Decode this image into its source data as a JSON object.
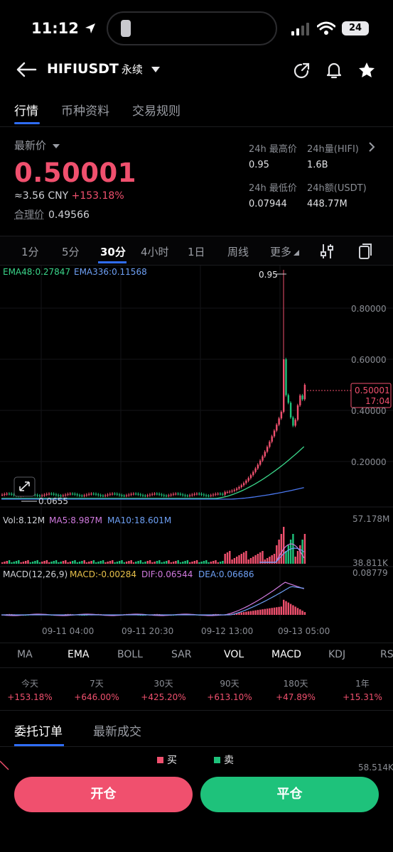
{
  "status_bar": {
    "time": "11:12",
    "battery": "24"
  },
  "header": {
    "pair": "HIFIUSDT",
    "contract_type": "永续"
  },
  "tabs": [
    {
      "label": "行情"
    },
    {
      "label": "币种资料"
    },
    {
      "label": "交易规则"
    }
  ],
  "ticker": {
    "last_price_label": "最新价",
    "last_price": "0.50001",
    "cny_value": "≈3.56 CNY",
    "change_pct": "+153.18%",
    "fair_price_label": "合理价",
    "fair_price": "0.49566",
    "high_label": "24h 最高价",
    "high_value": "0.95",
    "low_label": "24h 最低价",
    "low_value": "0.07944",
    "vol_label": "24h量(HIFI)",
    "vol_value": "1.6B",
    "amount_label": "24h额(USDT)",
    "amount_value": "448.77M"
  },
  "intervals": [
    {
      "label": "1分"
    },
    {
      "label": "5分"
    },
    {
      "label": "30分"
    },
    {
      "label": "4小时"
    },
    {
      "label": "1日"
    },
    {
      "label": "周线"
    },
    {
      "label": "更多"
    }
  ],
  "chart": {
    "ema48_label": "EMA48:0.27847",
    "ema336_label": "EMA336:0.11568",
    "peak_label": "0.95",
    "low_label": "0.0655",
    "y_ticks": [
      "0.80000",
      "0.60000",
      "0.40000",
      "0.20000"
    ],
    "current_price_tag": "0.50001",
    "countdown": "17:04",
    "vol_label": "Vol:8.12M",
    "ma5_label": "MA5:8.987M",
    "ma10_label": "MA10:18.601M",
    "vol_top": "57.178M",
    "vol_bottom": "38.811K",
    "macd_label": "MACD(12,26,9)",
    "macd_value": "MACD:-0.00284",
    "dif_value": "DIF:0.06544",
    "dea_value": "DEA:0.06686",
    "macd_top": "0.08779",
    "x_labels": [
      "09-11 04:00",
      "09-11 20:30",
      "09-12 13:00",
      "09-13 05:00"
    ],
    "colors": {
      "up": "#f0506e",
      "down": "#1ec27b",
      "ema48": "#3ad68a",
      "ema336": "#4a78f0",
      "ma5": "#d17adf",
      "ma10": "#6ea0f5",
      "macd_yellow": "#e8c14a"
    }
  },
  "indicators": [
    {
      "label": "MA"
    },
    {
      "label": "EMA"
    },
    {
      "label": "BOLL"
    },
    {
      "label": "SAR"
    },
    {
      "label": "VOL"
    },
    {
      "label": "MACD"
    },
    {
      "label": "KDJ"
    },
    {
      "label": "RS"
    }
  ],
  "performance": [
    {
      "label": "今天",
      "value": "+153.18%"
    },
    {
      "label": "7天",
      "value": "+646.00%"
    },
    {
      "label": "30天",
      "value": "+425.20%"
    },
    {
      "label": "90天",
      "value": "+613.10%"
    },
    {
      "label": "180天",
      "value": "+47.89%"
    },
    {
      "label": "1年",
      "value": "+15.31%"
    }
  ],
  "order_tabs": [
    {
      "label": "委托订单"
    },
    {
      "label": "最新成交"
    }
  ],
  "legend": {
    "buy": "买",
    "sell": "卖"
  },
  "depth_value": "58.514K",
  "buttons": {
    "open": "开仓",
    "close": "平仓"
  }
}
